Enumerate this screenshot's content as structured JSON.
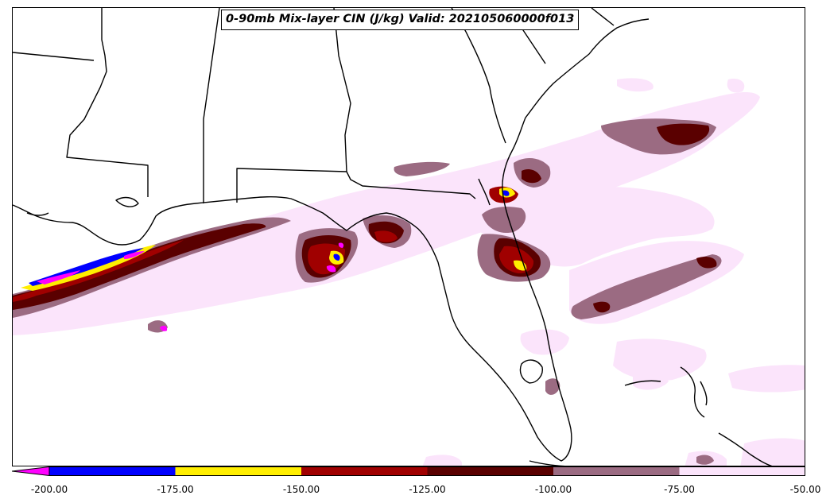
{
  "title": "0-90mb Mix-layer CIN (J/kg) Valid: 202105060000f013",
  "colorbar": {
    "extend": "min",
    "extend_color": "#ff00ff",
    "bins": [
      {
        "from": -200,
        "to": -175,
        "color": "#0000ff"
      },
      {
        "from": -175,
        "to": -150,
        "color": "#ffee00"
      },
      {
        "from": -150,
        "to": -125,
        "color": "#a00000"
      },
      {
        "from": -125,
        "to": -100,
        "color": "#5a0000"
      },
      {
        "from": -100,
        "to": -75,
        "color": "#9b6b82"
      },
      {
        "from": -75,
        "to": -50,
        "color": "#fbe4fb"
      }
    ],
    "tick_values": [
      -200,
      -175,
      -150,
      -125,
      -100,
      -75,
      -50
    ],
    "tick_labels": [
      "-200.00",
      "-175.00",
      "-150.00",
      "-125.00",
      "-100.00",
      "-75.00",
      "-50.00"
    ]
  },
  "colors": {
    "lightest": "#fbe4fb",
    "mauve": "#9b6b82",
    "dark_maroon": "#5a0000",
    "red": "#a00000",
    "yellow": "#ffee00",
    "blue": "#0000ff",
    "magenta": "#ff00ff",
    "border": "#000000"
  }
}
